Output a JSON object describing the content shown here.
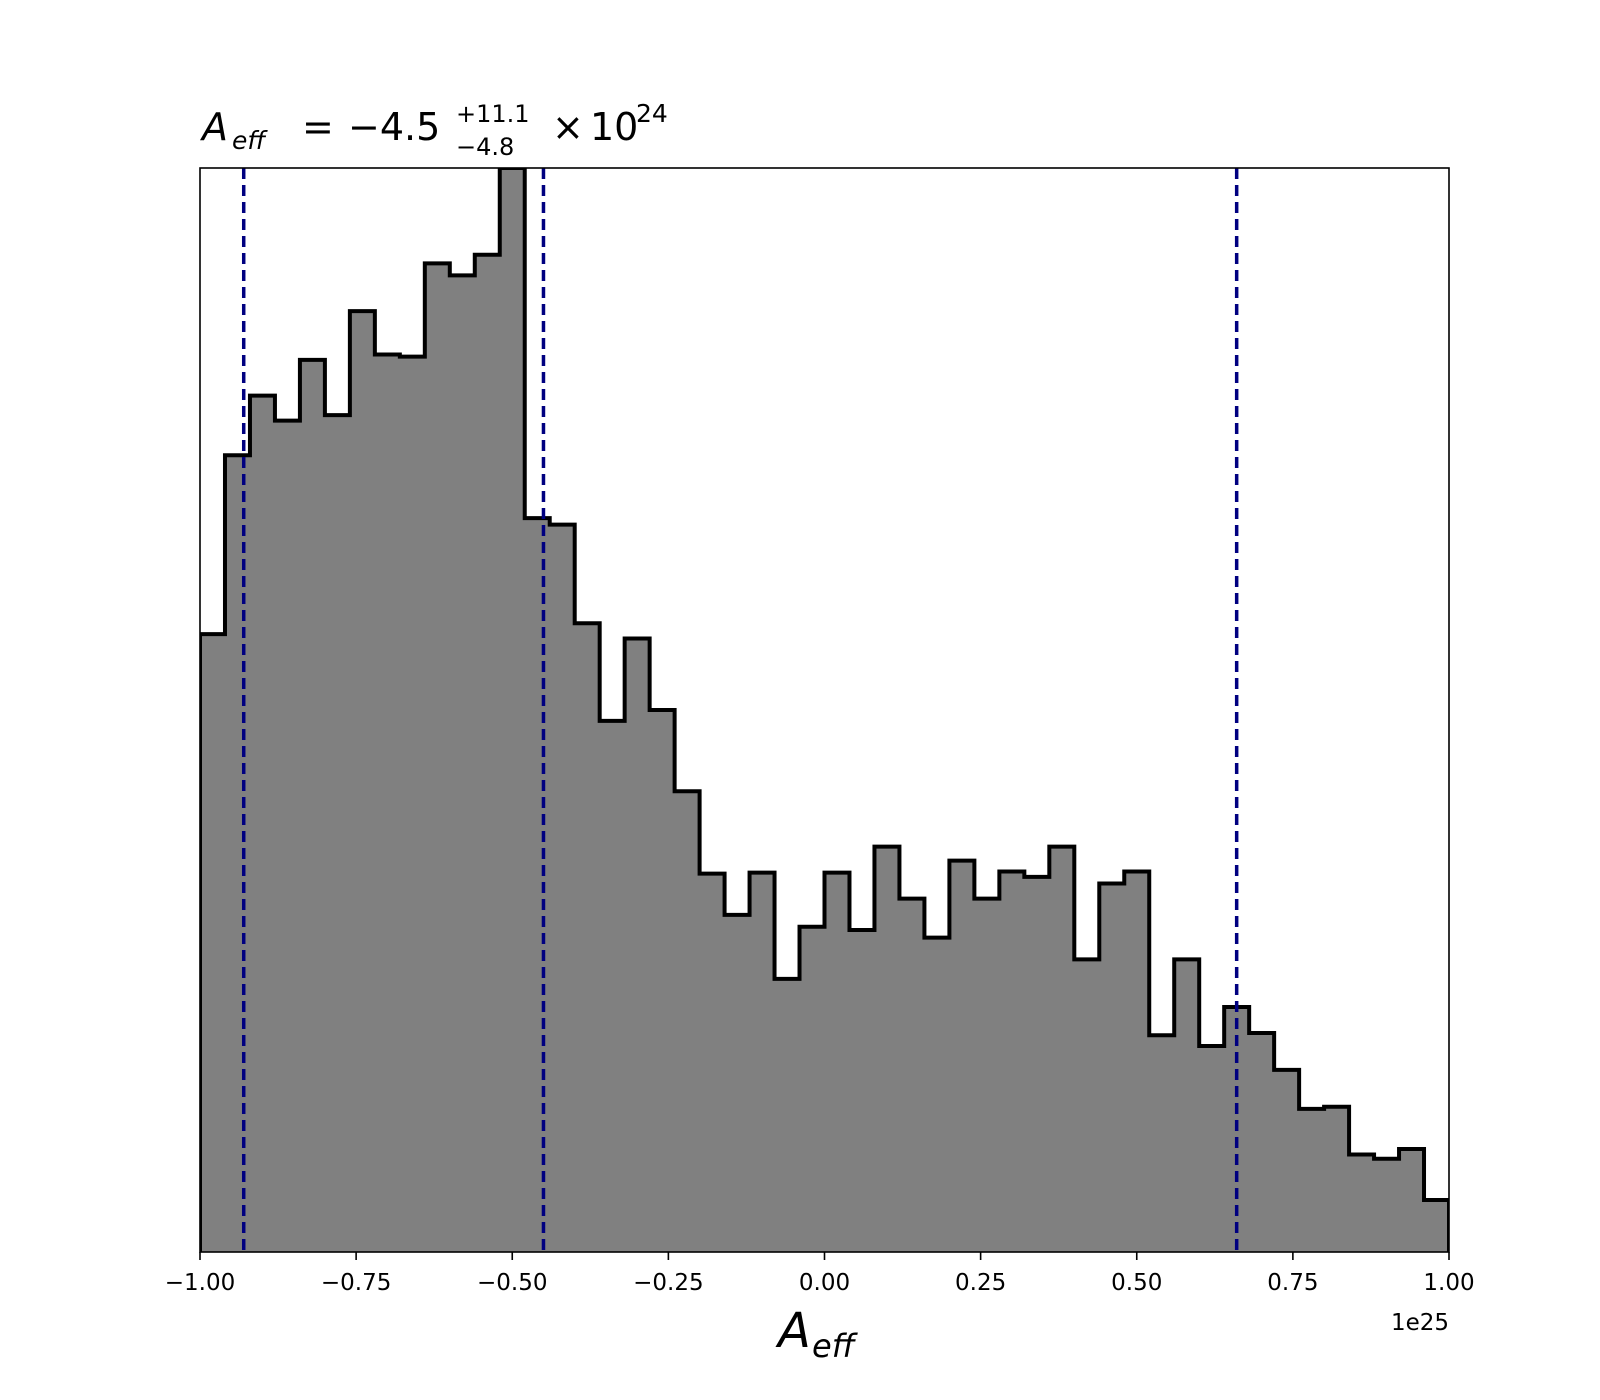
{
  "chart_data": {
    "type": "histogram",
    "title": {
      "symbol": "A",
      "symbol_sub": "eff",
      "equals": "=",
      "median": "−4.5",
      "upper_err": "+11.1",
      "lower_err": "−4.8",
      "times": "×",
      "base": "10",
      "exponent": "24"
    },
    "xlabel": {
      "symbol": "A",
      "sub": "eff"
    },
    "offset_label": "1e25",
    "xlim": [
      -1.0,
      1.0
    ],
    "xticks": [
      -1.0,
      -0.75,
      -0.5,
      -0.25,
      0.0,
      0.25,
      0.5,
      0.75,
      1.0
    ],
    "xtick_labels": [
      "−1.00",
      "−0.75",
      "−0.50",
      "−0.25",
      "0.00",
      "0.25",
      "0.50",
      "0.75",
      "1.00"
    ],
    "yticks_shown": false,
    "ylim": [
      0,
      1.0
    ],
    "bins": {
      "start": -1.0,
      "end": 1.0,
      "count": 50
    },
    "counts": [
      0.57,
      0.735,
      0.79,
      0.767,
      0.823,
      0.772,
      0.868,
      0.828,
      0.826,
      0.912,
      0.901,
      0.92,
      1.0,
      0.677,
      0.671,
      0.58,
      0.49,
      0.566,
      0.5,
      0.425,
      0.349,
      0.311,
      0.35,
      0.252,
      0.3,
      0.35,
      0.297,
      0.374,
      0.326,
      0.29,
      0.361,
      0.326,
      0.351,
      0.346,
      0.374,
      0.27,
      0.34,
      0.351,
      0.2,
      0.27,
      0.19,
      0.226,
      0.202,
      0.168,
      0.132,
      0.134,
      0.09,
      0.086,
      0.095,
      0.048
    ],
    "fill_color": "#808080",
    "edge_color": "#000000",
    "vlines": {
      "values": [
        -0.93,
        -0.45,
        0.66
      ],
      "color": "#000080",
      "style": "dashed"
    }
  }
}
